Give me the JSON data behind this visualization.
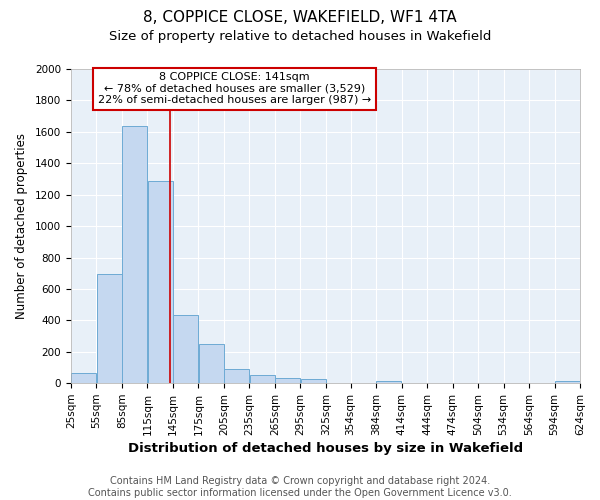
{
  "title": "8, COPPICE CLOSE, WAKEFIELD, WF1 4TA",
  "subtitle": "Size of property relative to detached houses in Wakefield",
  "xlabel": "Distribution of detached houses by size in Wakefield",
  "ylabel": "Number of detached properties",
  "bar_left_edges": [
    25,
    55,
    85,
    115,
    145,
    175,
    205,
    235,
    265,
    295,
    325,
    354,
    384,
    414,
    444,
    474,
    504,
    534,
    564,
    594
  ],
  "bar_widths": [
    30,
    30,
    30,
    30,
    30,
    30,
    30,
    30,
    30,
    30,
    29,
    30,
    30,
    30,
    30,
    30,
    30,
    30,
    30,
    30
  ],
  "bar_heights": [
    65,
    695,
    1635,
    1285,
    435,
    250,
    90,
    50,
    30,
    25,
    0,
    0,
    15,
    0,
    0,
    0,
    0,
    0,
    0,
    15
  ],
  "bar_color": "#c5d8f0",
  "bar_edge_color": "#6daad4",
  "vline_color": "#cc0000",
  "vline_x": 141,
  "annotation_box_color": "#cc0000",
  "annotation_line1": "8 COPPICE CLOSE: 141sqm",
  "annotation_line2": "← 78% of detached houses are smaller (3,529)",
  "annotation_line3": "22% of semi-detached houses are larger (987) →",
  "xlim": [
    25,
    624
  ],
  "ylim": [
    0,
    2000
  ],
  "yticks": [
    0,
    200,
    400,
    600,
    800,
    1000,
    1200,
    1400,
    1600,
    1800,
    2000
  ],
  "xtick_labels": [
    "25sqm",
    "55sqm",
    "85sqm",
    "115sqm",
    "145sqm",
    "175sqm",
    "205sqm",
    "235sqm",
    "265sqm",
    "295sqm",
    "325sqm",
    "354sqm",
    "384sqm",
    "414sqm",
    "444sqm",
    "474sqm",
    "504sqm",
    "534sqm",
    "564sqm",
    "594sqm",
    "624sqm"
  ],
  "xtick_positions": [
    25,
    55,
    85,
    115,
    145,
    175,
    205,
    235,
    265,
    295,
    325,
    354,
    384,
    414,
    444,
    474,
    504,
    534,
    564,
    594,
    624
  ],
  "fig_bg_color": "#ffffff",
  "plot_bg_color": "#e8f0f8",
  "footer_line1": "Contains HM Land Registry data © Crown copyright and database right 2024.",
  "footer_line2": "Contains public sector information licensed under the Open Government Licence v3.0.",
  "title_fontsize": 11,
  "subtitle_fontsize": 9.5,
  "xlabel_fontsize": 9.5,
  "ylabel_fontsize": 8.5,
  "tick_fontsize": 7.5,
  "annotation_fontsize": 8,
  "footer_fontsize": 7
}
